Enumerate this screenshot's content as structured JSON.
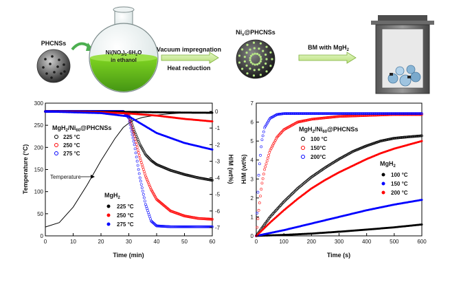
{
  "scheme": {
    "phcns_label": "PHCNSs",
    "flask_text": [
      "Ni(NO",
      "3",
      ")",
      "2",
      "·6H",
      "2",
      "O",
      "in ethanol"
    ],
    "arrow1_top": "Vacuum impregnation",
    "arrow1_bottom": "Heat reduction",
    "ni_label": [
      "Ni",
      "x",
      "@PHCNSs"
    ],
    "arrow2_label": [
      "BM with MgH",
      "2"
    ]
  },
  "chart_data": [
    {
      "type": "line",
      "title": "",
      "xlabel": "Time (min)",
      "ylabel": "Temperature (°C)",
      "y2label": "H/M (wt%)",
      "xlim": [
        0,
        60
      ],
      "ylim": [
        0,
        300
      ],
      "y2lim": [
        -7.5,
        0.5
      ],
      "xticks": [
        0,
        10,
        20,
        30,
        40,
        50,
        60
      ],
      "yticks": [
        0,
        50,
        100,
        150,
        200,
        250,
        300
      ],
      "y2ticks": [
        0,
        -1,
        -2,
        -3,
        -4,
        -5,
        -6,
        -7
      ],
      "legend_groups": [
        {
          "title": [
            "MgH",
            "2",
            "/Ni",
            "60",
            "@PHCNSs"
          ],
          "entries": [
            "225 °C",
            "250 °C",
            "275 °C"
          ],
          "marker": "open-circle"
        },
        {
          "title": [
            "MgH",
            "2"
          ],
          "entries": [
            "225 °C",
            "250 °C",
            "275 °C"
          ],
          "marker": "filled-circle"
        }
      ],
      "annotation": "Temperature",
      "series": [
        {
          "name": "Temperature",
          "axis": "left",
          "color": "#000000",
          "x": [
            0,
            5,
            10,
            15,
            20,
            25,
            28,
            30,
            32,
            35,
            40,
            45,
            50,
            55,
            60
          ],
          "y": [
            20,
            30,
            65,
            115,
            170,
            220,
            245,
            255,
            262,
            268,
            273,
            276,
            278,
            279,
            280
          ]
        },
        {
          "name": "225 °C",
          "axis": "right",
          "color": "#000000",
          "x": [
            0,
            28,
            30,
            32,
            34,
            36,
            38,
            40,
            45,
            50,
            55,
            60
          ],
          "y": [
            0,
            0,
            -0.2,
            -1.2,
            -2.0,
            -2.6,
            -2.95,
            -3.2,
            -3.55,
            -3.8,
            -4.0,
            -4.15
          ]
        },
        {
          "name": "250 °C",
          "axis": "right",
          "color": "#ff0000",
          "x": [
            0,
            28,
            30,
            32,
            34,
            36,
            38,
            40,
            45,
            50,
            55,
            60
          ],
          "y": [
            0,
            0,
            -0.3,
            -1.5,
            -2.8,
            -3.9,
            -4.7,
            -5.3,
            -6.0,
            -6.3,
            -6.45,
            -6.5
          ]
        },
        {
          "name": "275 °C",
          "axis": "right",
          "color": "#0000ff",
          "x": [
            0,
            28,
            30,
            32,
            34,
            36,
            38,
            40,
            45,
            50,
            55,
            60
          ],
          "y": [
            0,
            0,
            -0.4,
            -2.0,
            -4.0,
            -5.6,
            -6.6,
            -6.9,
            -6.95,
            -6.95,
            -6.95,
            -6.95
          ]
        },
        {
          "name": "MgH2 225 °C",
          "axis": "right",
          "color": "#000000",
          "x": [
            0,
            20,
            30,
            40,
            50,
            60
          ],
          "y": [
            0,
            -0.02,
            -0.03,
            -0.05,
            -0.07,
            -0.08
          ]
        },
        {
          "name": "MgH2 250 °C",
          "axis": "right",
          "color": "#ff0000",
          "x": [
            0,
            20,
            30,
            40,
            50,
            60
          ],
          "y": [
            0,
            -0.05,
            -0.12,
            -0.25,
            -0.45,
            -0.6
          ]
        },
        {
          "name": "MgH2 275 °C",
          "axis": "right",
          "color": "#0000ff",
          "x": [
            0,
            20,
            30,
            35,
            40,
            50,
            60
          ],
          "y": [
            0,
            -0.1,
            -0.3,
            -0.8,
            -1.3,
            -1.9,
            -2.3
          ]
        }
      ]
    },
    {
      "type": "line",
      "title": "",
      "xlabel": "Time (s)",
      "ylabel": "H/M (wt%)",
      "xlim": [
        0,
        600
      ],
      "ylim": [
        0,
        7
      ],
      "xticks": [
        0,
        100,
        200,
        300,
        400,
        500,
        600
      ],
      "yticks": [
        0,
        1,
        2,
        3,
        4,
        5,
        6,
        7
      ],
      "legend_groups": [
        {
          "title": [
            "MgH",
            "2",
            "/Ni",
            "60",
            "@PHCNSs"
          ],
          "entries": [
            "100 °C",
            "150°C",
            "200°C"
          ],
          "marker": "open-circle"
        },
        {
          "title": [
            "MgH",
            "2"
          ],
          "entries": [
            "100 °C",
            "150 °C",
            "200 °C"
          ],
          "marker": "filled-circle"
        }
      ],
      "series": [
        {
          "name": "100 °C",
          "color": "#000000",
          "x": [
            0,
            25,
            50,
            100,
            150,
            200,
            250,
            300,
            350,
            400,
            450,
            500,
            550,
            600
          ],
          "y": [
            0,
            0.5,
            1.0,
            1.8,
            2.5,
            3.1,
            3.6,
            4.05,
            4.45,
            4.75,
            5.0,
            5.15,
            5.22,
            5.28
          ]
        },
        {
          "name": "150°C",
          "color": "#ff0000",
          "x": [
            0,
            10,
            20,
            30,
            50,
            75,
            100,
            150,
            200,
            300,
            400,
            500,
            600
          ],
          "y": [
            0,
            1.5,
            2.7,
            3.5,
            4.5,
            5.2,
            5.6,
            6.0,
            6.15,
            6.3,
            6.35,
            6.4,
            6.4
          ]
        },
        {
          "name": "200°C",
          "color": "#0000ff",
          "x": [
            0,
            5,
            10,
            20,
            30,
            50,
            75,
            100,
            150,
            600
          ],
          "y": [
            0,
            2.0,
            3.5,
            5.0,
            5.7,
            6.2,
            6.4,
            6.45,
            6.45,
            6.45
          ]
        },
        {
          "name": "MgH2 100 °C",
          "color": "#000000",
          "x": [
            0,
            100,
            200,
            300,
            400,
            500,
            600
          ],
          "y": [
            0,
            0.05,
            0.12,
            0.22,
            0.33,
            0.45,
            0.6
          ]
        },
        {
          "name": "MgH2 150 °C",
          "color": "#0000ff",
          "x": [
            0,
            100,
            200,
            300,
            400,
            500,
            600
          ],
          "y": [
            0,
            0.3,
            0.65,
            1.0,
            1.35,
            1.65,
            1.9
          ]
        },
        {
          "name": "MgH2 200 °C",
          "color": "#ff0000",
          "x": [
            0,
            25,
            50,
            100,
            150,
            200,
            250,
            300,
            350,
            400,
            450,
            500,
            550,
            600
          ],
          "y": [
            0,
            0.35,
            0.7,
            1.35,
            1.95,
            2.5,
            2.95,
            3.35,
            3.7,
            4.05,
            4.35,
            4.6,
            4.8,
            5.0
          ]
        }
      ]
    }
  ]
}
